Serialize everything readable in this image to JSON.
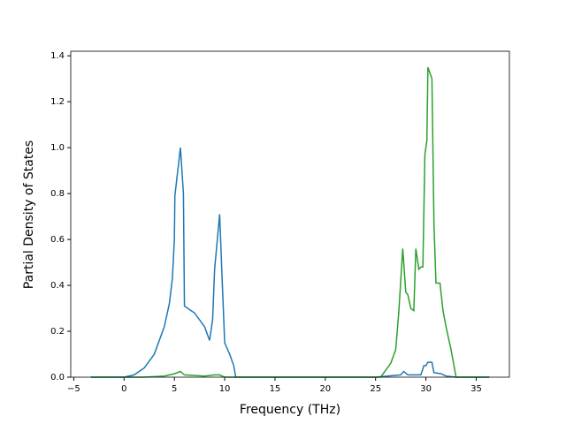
{
  "chart_data": {
    "type": "line",
    "xlabel": "Frequency (THz)",
    "ylabel": "Partial Density of States",
    "xlim": [
      -5.3,
      38.3
    ],
    "ylim": [
      0,
      1.42
    ],
    "xticks": [
      {
        "value": -5,
        "label": "−5"
      },
      0,
      5,
      10,
      15,
      20,
      25,
      30,
      35
    ],
    "yticks": [
      {
        "value": 0,
        "label": "0.0"
      },
      {
        "value": 0.2,
        "label": "0.2"
      },
      {
        "value": 0.4,
        "label": "0.4"
      },
      {
        "value": 0.6,
        "label": "0.6"
      },
      {
        "value": 0.8,
        "label": "0.8"
      },
      {
        "value": 1.0,
        "label": "1.0"
      },
      {
        "value": 1.2,
        "label": "1.2"
      },
      {
        "value": 1.4,
        "label": "1.4"
      }
    ],
    "series": [
      {
        "color": "#1f77b4",
        "x": [
          -3.3,
          0,
          1,
          2,
          3,
          4,
          4.5,
          4.8,
          5,
          5.05,
          5.6,
          5.9,
          6,
          7,
          8,
          8.5,
          8.8,
          9,
          9.5,
          9.7,
          10,
          10.5,
          10.9,
          11.1,
          25,
          27.5,
          27.8,
          28.2,
          29,
          29.5,
          29.8,
          30,
          30.2,
          30.6,
          30.8,
          31.5,
          32,
          33,
          36.3
        ],
        "values": [
          0,
          0,
          0.01,
          0.04,
          0.1,
          0.22,
          0.32,
          0.43,
          0.6,
          0.79,
          1.0,
          0.8,
          0.31,
          0.28,
          0.22,
          0.16,
          0.25,
          0.47,
          0.71,
          0.48,
          0.15,
          0.1,
          0.05,
          0,
          0,
          0.01,
          0.025,
          0.01,
          0.01,
          0.01,
          0.05,
          0.05,
          0.065,
          0.065,
          0.02,
          0.015,
          0.005,
          0,
          0
        ]
      },
      {
        "color": "#2ca02c",
        "x": [
          -3.3,
          2,
          4,
          5,
          5.6,
          6,
          8,
          9,
          9.5,
          10,
          25.5,
          26,
          26.5,
          27,
          27.3,
          27.7,
          28,
          28.2,
          28.5,
          28.8,
          29,
          29.3,
          29.5,
          29.7,
          29.9,
          30.1,
          30.2,
          30.6,
          30.8,
          31,
          31.4,
          31.7,
          32,
          32.5,
          33,
          36.3
        ],
        "values": [
          0,
          0,
          0.005,
          0.015,
          0.025,
          0.01,
          0.005,
          0.01,
          0.01,
          0,
          0,
          0.03,
          0.06,
          0.12,
          0.28,
          0.56,
          0.37,
          0.36,
          0.3,
          0.29,
          0.56,
          0.47,
          0.48,
          0.48,
          0.97,
          1.03,
          1.35,
          1.3,
          0.67,
          0.41,
          0.41,
          0.29,
          0.22,
          0.12,
          0,
          0
        ]
      }
    ]
  }
}
